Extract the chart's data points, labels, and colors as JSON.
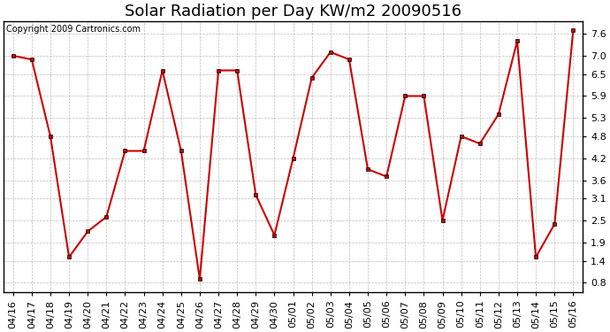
{
  "title": "Solar Radiation per Day KW/m2 20090516",
  "copyright": "Copyright 2009 Cartronics.com",
  "x_labels": [
    "04/16",
    "04/17",
    "04/18",
    "04/19",
    "04/20",
    "04/21",
    "04/22",
    "04/23",
    "04/24",
    "04/25",
    "04/26",
    "04/27",
    "04/28",
    "04/29",
    "04/30",
    "05/01",
    "05/02",
    "05/03",
    "05/04",
    "05/05",
    "05/06",
    "05/07",
    "05/08",
    "05/09",
    "05/10",
    "05/11",
    "05/12",
    "05/13",
    "05/14",
    "05/15",
    "05/16"
  ],
  "y_values": [
    7.0,
    6.9,
    4.8,
    1.5,
    2.2,
    2.6,
    4.4,
    4.4,
    6.6,
    4.4,
    0.9,
    6.6,
    6.6,
    3.2,
    2.1,
    4.2,
    6.4,
    7.1,
    6.9,
    3.9,
    3.7,
    5.9,
    5.9,
    2.5,
    4.8,
    4.6,
    5.4,
    7.4,
    1.5,
    2.4,
    7.7
  ],
  "line_color": "#cc0000",
  "marker_color": "#000000",
  "background_color": "#ffffff",
  "grid_color": "#bbbbbb",
  "y_ticks": [
    0.8,
    1.4,
    1.9,
    2.5,
    3.1,
    3.6,
    4.2,
    4.8,
    5.3,
    5.9,
    6.5,
    7.0,
    7.6
  ],
  "ylim": [
    0.55,
    7.95
  ],
  "title_fontsize": 13,
  "tick_fontsize": 8,
  "copyright_fontsize": 7
}
